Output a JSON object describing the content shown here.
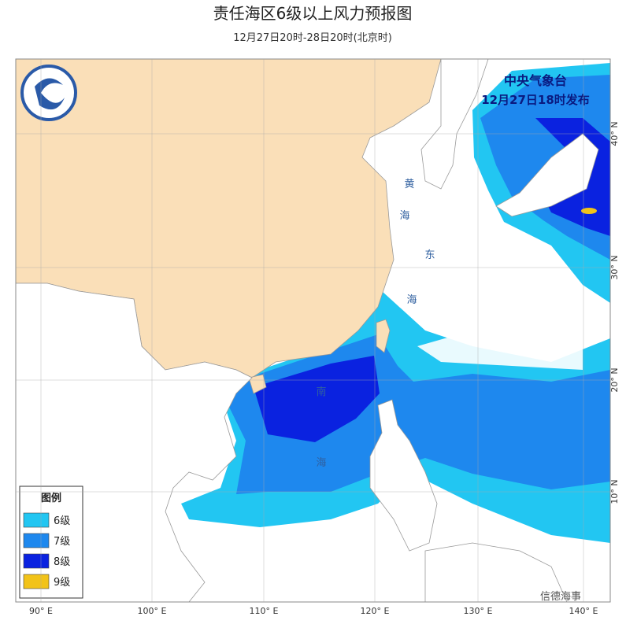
{
  "header": {
    "title": "责任海区6级以上风力预报图",
    "subtitle": "12月27日20时-28日20时(北京时)"
  },
  "issuer": {
    "name": "中央气象台",
    "time": "12月27日18时发布"
  },
  "legend": {
    "title": "图例",
    "items": [
      {
        "label": "6级",
        "color": "#22c6f2"
      },
      {
        "label": "7级",
        "color": "#1e88ee"
      },
      {
        "label": "8级",
        "color": "#0a22e0"
      },
      {
        "label": "9级",
        "color": "#f2c318"
      }
    ]
  },
  "longitude_labels": [
    "90° E",
    "100° E",
    "110° E",
    "120° E",
    "130° E",
    "140° E"
  ],
  "latitude_labels": [
    "40° N",
    "30° N",
    "20° N",
    "10° N"
  ],
  "sea_labels": [
    "黄",
    "海",
    "东",
    "海",
    "南",
    "海"
  ],
  "watermark": "信德海事"
}
